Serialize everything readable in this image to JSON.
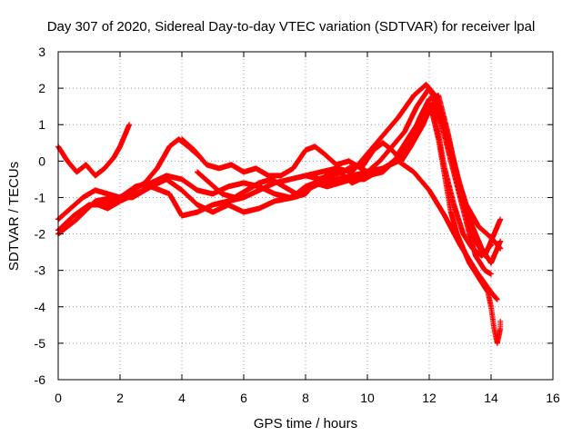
{
  "chart_data": {
    "type": "scatter",
    "title": "Day 307 of 2020, Sidereal Day-to-day VTEC variation (SDTVAR) for receiver lpal",
    "xlabel": "GPS time / hours",
    "ylabel": "SDTVAR / TECUs",
    "xlim": [
      0,
      16
    ],
    "ylim": [
      -6,
      3
    ],
    "xticks": [
      0,
      2,
      4,
      6,
      8,
      10,
      12,
      14,
      16
    ],
    "yticks": [
      -6,
      -5,
      -4,
      -3,
      -2,
      -1,
      0,
      1,
      2,
      3
    ],
    "grid": true,
    "marker": "+",
    "colors": {
      "series": "#ff0000",
      "grid": "#a0a0a0",
      "axes": "#000000"
    },
    "series": [
      {
        "points": [
          [
            0,
            0.4
          ],
          [
            0.3,
            0.0
          ],
          [
            0.6,
            -0.3
          ],
          [
            0.9,
            -0.1
          ],
          [
            1.2,
            -0.4
          ],
          [
            1.5,
            -0.2
          ],
          [
            1.8,
            0.1
          ],
          [
            2.0,
            0.4
          ],
          [
            2.3,
            1.0
          ]
        ]
      },
      {
        "points": [
          [
            0,
            -1.6
          ],
          [
            0.4,
            -1.3
          ],
          [
            0.8,
            -1.0
          ],
          [
            1.2,
            -0.8
          ],
          [
            1.6,
            -0.9
          ],
          [
            2.0,
            -1.0
          ],
          [
            2.4,
            -0.8
          ],
          [
            2.8,
            -0.6
          ],
          [
            3.2,
            -0.2
          ],
          [
            3.6,
            0.4
          ],
          [
            3.9,
            0.6
          ],
          [
            4.2,
            0.4
          ],
          [
            4.6,
            0.1
          ]
        ]
      },
      {
        "points": [
          [
            0,
            -1.9
          ],
          [
            0.5,
            -1.5
          ],
          [
            1.0,
            -1.2
          ],
          [
            1.5,
            -1.2
          ],
          [
            2.0,
            -1.0
          ],
          [
            2.5,
            -0.7
          ],
          [
            3.0,
            -0.6
          ],
          [
            3.5,
            -0.4
          ],
          [
            4.0,
            -0.5
          ],
          [
            4.5,
            -0.8
          ],
          [
            5.0,
            -0.9
          ],
          [
            5.5,
            -0.7
          ],
          [
            6.0,
            -0.6
          ],
          [
            6.5,
            -0.7
          ],
          [
            7.0,
            -0.9
          ],
          [
            7.5,
            -1.0
          ],
          [
            8.0,
            -0.8
          ],
          [
            8.5,
            -0.6
          ],
          [
            9.0,
            -0.5
          ],
          [
            9.5,
            -0.4
          ],
          [
            10.0,
            -0.3
          ],
          [
            10.5,
            -0.2
          ],
          [
            11.0,
            0.0
          ],
          [
            11.5,
            -0.3
          ],
          [
            12.0,
            -0.8
          ],
          [
            12.5,
            -1.5
          ],
          [
            13.0,
            -2.3
          ],
          [
            13.5,
            -3.0
          ],
          [
            14.0,
            -3.6
          ],
          [
            14.2,
            -3.8
          ]
        ]
      },
      {
        "points": [
          [
            0,
            -2.0
          ],
          [
            0.6,
            -1.6
          ],
          [
            1.2,
            -1.1
          ],
          [
            1.8,
            -1.0
          ],
          [
            2.4,
            -1.0
          ],
          [
            3.0,
            -0.7
          ],
          [
            3.6,
            -0.9
          ],
          [
            4.0,
            -1.5
          ],
          [
            4.5,
            -1.4
          ],
          [
            5.0,
            -1.2
          ],
          [
            5.5,
            -1.1
          ],
          [
            6.0,
            -1.0
          ],
          [
            6.5,
            -0.8
          ],
          [
            7.0,
            -0.6
          ],
          [
            7.5,
            -0.5
          ],
          [
            8.0,
            -0.4
          ],
          [
            8.5,
            -0.3
          ],
          [
            9.0,
            -0.2
          ],
          [
            9.5,
            -0.3
          ],
          [
            10.0,
            0.2
          ],
          [
            10.5,
            0.7
          ],
          [
            11.0,
            1.2
          ],
          [
            11.5,
            1.8
          ],
          [
            11.9,
            2.1
          ],
          [
            12.2,
            1.8
          ],
          [
            12.5,
            1.0
          ],
          [
            12.8,
            0.0
          ],
          [
            13.1,
            -1.0
          ],
          [
            13.4,
            -1.8
          ],
          [
            13.7,
            -2.4
          ],
          [
            14.0,
            -2.8
          ],
          [
            14.3,
            -2.2
          ]
        ]
      },
      {
        "points": [
          [
            1.3,
            -1.2
          ],
          [
            1.6,
            -1.3
          ],
          [
            2.0,
            -1.1
          ],
          [
            2.5,
            -0.9
          ],
          [
            3.0,
            -0.7
          ],
          [
            3.5,
            -0.5
          ],
          [
            4.0,
            -0.8
          ],
          [
            4.5,
            -1.2
          ],
          [
            5.0,
            -1.4
          ],
          [
            5.5,
            -1.2
          ],
          [
            6.0,
            -1.4
          ],
          [
            6.5,
            -1.3
          ],
          [
            7.0,
            -1.1
          ],
          [
            7.6,
            -1.0
          ],
          [
            8.0,
            -0.9
          ],
          [
            8.4,
            -0.5
          ],
          [
            8.8,
            -0.4
          ],
          [
            9.2,
            -0.3
          ],
          [
            9.6,
            -0.1
          ],
          [
            10.0,
            -0.3
          ],
          [
            10.4,
            0.0
          ],
          [
            10.8,
            0.4
          ],
          [
            11.2,
            0.8
          ],
          [
            11.6,
            1.5
          ],
          [
            12.0,
            2.0
          ],
          [
            12.3,
            1.5
          ],
          [
            12.6,
            0.5
          ],
          [
            12.9,
            -0.5
          ],
          [
            13.2,
            -1.5
          ],
          [
            13.5,
            -2.2
          ],
          [
            13.8,
            -2.6
          ],
          [
            14.1,
            -2.0
          ],
          [
            14.3,
            -1.6
          ]
        ]
      },
      {
        "points": [
          [
            4.5,
            -0.3
          ],
          [
            4.9,
            -0.6
          ],
          [
            5.3,
            -0.9
          ],
          [
            5.7,
            -1.0
          ],
          [
            6.1,
            -0.8
          ],
          [
            6.5,
            -0.6
          ],
          [
            6.9,
            -0.5
          ],
          [
            7.3,
            -0.7
          ],
          [
            7.7,
            -0.9
          ],
          [
            8.0,
            -0.7
          ],
          [
            8.3,
            -0.6
          ],
          [
            8.7,
            -0.7
          ],
          [
            9.1,
            -0.6
          ],
          [
            9.5,
            -0.5
          ],
          [
            9.9,
            -0.5
          ],
          [
            10.3,
            -0.3
          ],
          [
            10.7,
            -0.1
          ],
          [
            11.1,
            0.2
          ],
          [
            11.4,
            0.6
          ],
          [
            11.7,
            1.2
          ],
          [
            12.0,
            1.7
          ],
          [
            12.3,
            1.8
          ],
          [
            12.6,
            0.8
          ],
          [
            12.9,
            -0.4
          ],
          [
            13.2,
            -1.2
          ],
          [
            13.6,
            -1.8
          ],
          [
            14.0,
            -2.1
          ],
          [
            14.3,
            -2.4
          ]
        ]
      },
      {
        "points": [
          [
            4.0,
            0.6
          ],
          [
            4.4,
            0.3
          ],
          [
            4.8,
            -0.1
          ],
          [
            5.2,
            -0.2
          ],
          [
            5.6,
            -0.1
          ],
          [
            6.0,
            -0.3
          ],
          [
            6.4,
            -0.2
          ],
          [
            6.8,
            -0.4
          ],
          [
            7.2,
            -0.4
          ],
          [
            7.6,
            -0.2
          ],
          [
            8.0,
            0.3
          ],
          [
            8.3,
            0.4
          ],
          [
            8.6,
            0.2
          ],
          [
            9.0,
            -0.1
          ],
          [
            9.4,
            0.0
          ],
          [
            9.8,
            -0.2
          ],
          [
            10.2,
            0.3
          ],
          [
            10.5,
            0.5
          ],
          [
            10.8,
            0.3
          ],
          [
            11.1,
            0.0
          ],
          [
            11.4,
            0.4
          ],
          [
            11.7,
            1.1
          ],
          [
            12.0,
            1.5
          ],
          [
            12.2,
            1.2
          ],
          [
            12.5,
            -0.2
          ],
          [
            12.8,
            -1.2
          ],
          [
            13.1,
            -2.0
          ],
          [
            13.4,
            -2.4
          ],
          [
            13.7,
            -2.6
          ],
          [
            14.0,
            -2.3
          ]
        ]
      },
      {
        "points": [
          [
            8.0,
            -0.4
          ],
          [
            8.5,
            -0.5
          ],
          [
            9.0,
            -0.2
          ],
          [
            9.5,
            -0.6
          ],
          [
            10.0,
            -0.4
          ],
          [
            10.5,
            -0.3
          ],
          [
            11.0,
            0.1
          ],
          [
            11.4,
            0.4
          ],
          [
            11.8,
            1.0
          ],
          [
            12.1,
            1.6
          ],
          [
            12.4,
            1.0
          ],
          [
            12.7,
            0.0
          ],
          [
            13.0,
            -1.0
          ],
          [
            13.3,
            -2.0
          ],
          [
            13.5,
            -2.6
          ],
          [
            13.8,
            -3.0
          ],
          [
            14.0,
            -3.1
          ]
        ]
      },
      {
        "points": [
          [
            11.0,
            0.2
          ],
          [
            11.3,
            0.6
          ],
          [
            11.6,
            1.0
          ],
          [
            11.9,
            1.4
          ],
          [
            12.1,
            1.3
          ],
          [
            12.3,
            0.6
          ],
          [
            12.5,
            -0.4
          ],
          [
            12.7,
            -1.4
          ],
          [
            12.9,
            -2.0
          ],
          [
            13.1,
            -2.4
          ],
          [
            13.3,
            -2.8
          ],
          [
            13.6,
            -3.2
          ],
          [
            13.9,
            -3.6
          ],
          [
            14.0,
            -4.0
          ],
          [
            14.1,
            -4.6
          ],
          [
            14.2,
            -5.0
          ],
          [
            14.3,
            -4.6
          ],
          [
            14.3,
            -4.4
          ]
        ]
      }
    ]
  }
}
